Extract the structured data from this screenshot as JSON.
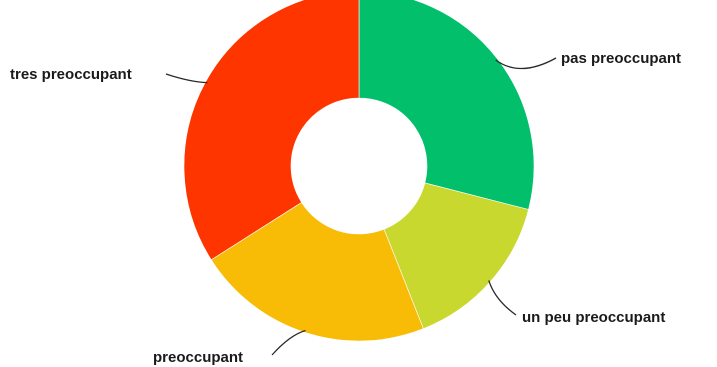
{
  "chart_data": {
    "type": "pie",
    "donut": true,
    "title": "",
    "slices": [
      {
        "label": "pas preoccupant",
        "value": 29,
        "color": "#02BF6B"
      },
      {
        "label": "un peu preoccupant",
        "value": 15,
        "color": "#C9D82E"
      },
      {
        "label": "preoccupant",
        "value": 22,
        "color": "#F8BB06"
      },
      {
        "label": "tres preoccupant",
        "value": 34,
        "color": "#FF3500"
      }
    ],
    "legend": "none",
    "labels": "outside-with-leader-lines"
  }
}
